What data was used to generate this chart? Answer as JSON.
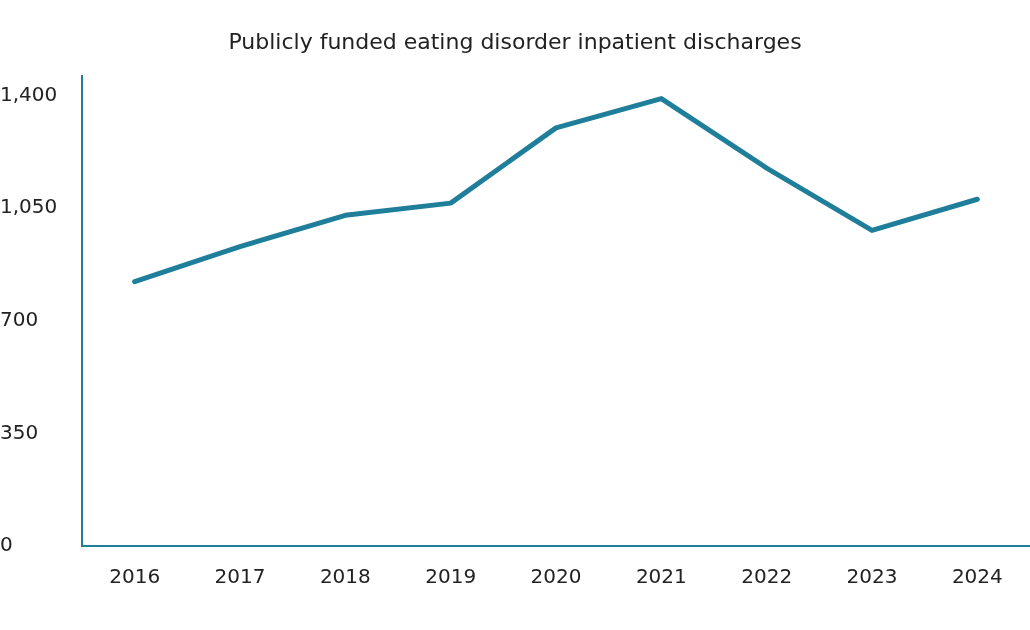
{
  "chart_data": {
    "type": "line",
    "title": "Publicly funded eating disorder inpatient discharges",
    "categories": [
      "2016",
      "2017",
      "2018",
      "2019",
      "2020",
      "2021",
      "2022",
      "2023",
      "2024"
    ],
    "series": [
      {
        "color": "#1f7f9a",
        "values": [
          822,
          931,
          1028,
          1066,
          1300,
          1391,
          1175,
          981,
          1078
        ]
      }
    ],
    "ylim": [
      0,
      1460
    ],
    "yticks": [
      0,
      350,
      700,
      {
        "value": 1050,
        "label": "1,050"
      },
      {
        "value": 1400,
        "label": "1,400"
      }
    ],
    "grid": false,
    "legend": false,
    "marker": "none",
    "line_style": "solid"
  }
}
